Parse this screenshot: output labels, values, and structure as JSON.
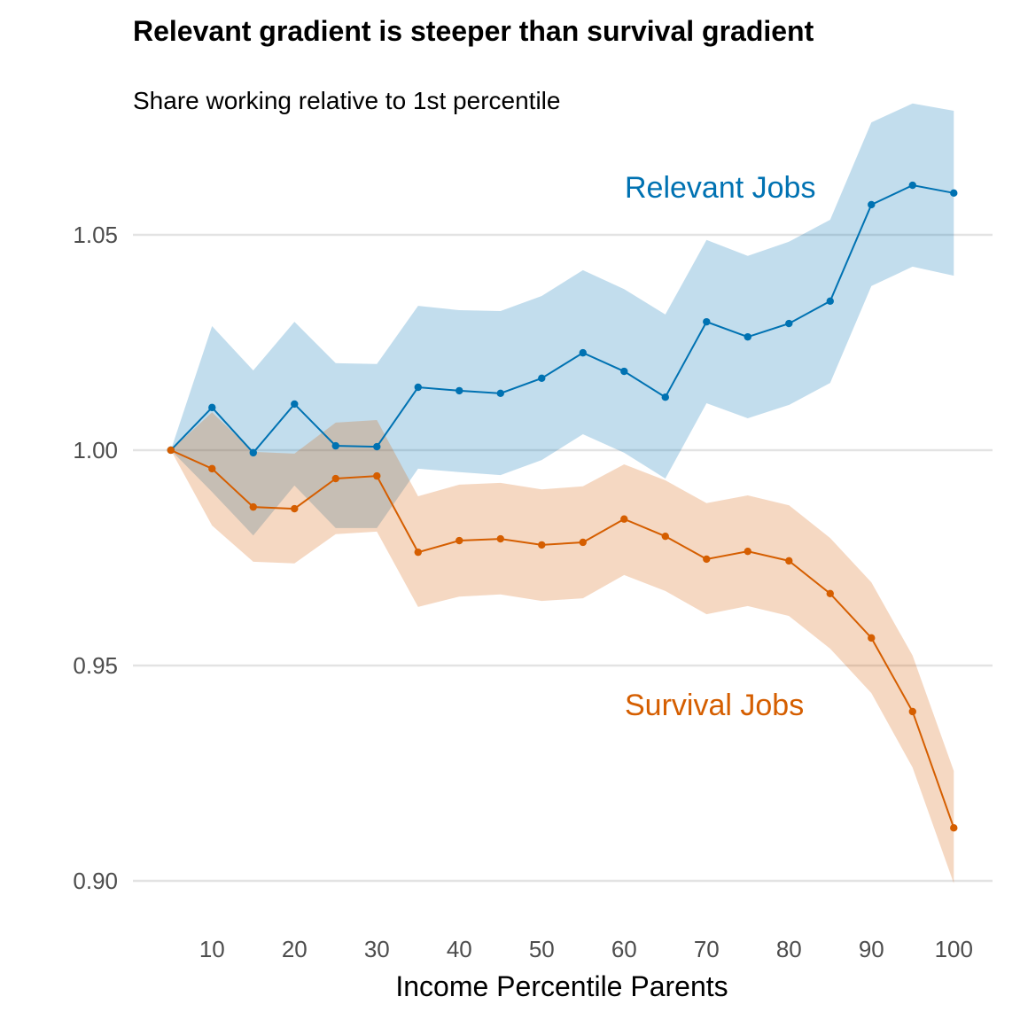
{
  "chart_data": {
    "type": "line",
    "title": "Relevant gradient is steeper than survival gradient",
    "subtitle": "Share working relative to 1st percentile",
    "xlabel": "Income Percentile Parents",
    "ylabel": "",
    "xlim": [
      0.4,
      104.7
    ],
    "ylim": [
      0.898,
      1.081
    ],
    "xticks": [
      10,
      20,
      30,
      40,
      50,
      60,
      70,
      80,
      90,
      100
    ],
    "xtick_labels": [
      "10",
      "20",
      "30",
      "40",
      "50",
      "60",
      "70",
      "80",
      "90",
      "100"
    ],
    "yticks": [
      0.9,
      0.95,
      1.0,
      1.05
    ],
    "ytick_labels": [
      "0.90",
      "0.95",
      "1.00",
      "1.05"
    ],
    "grid": "horizontal major lines only",
    "legend": "direct labels on the chart",
    "x": [
      5,
      10,
      15,
      20,
      25,
      30,
      35,
      40,
      45,
      50,
      55,
      60,
      65,
      70,
      75,
      80,
      85,
      90,
      95,
      100
    ],
    "series": [
      {
        "name": "Relevant Jobs",
        "color": "#0072B2",
        "values": [
          1.0,
          1.0099,
          0.9994,
          1.0107,
          1.001,
          1.0008,
          1.0146,
          1.0138,
          1.0132,
          1.0167,
          1.0226,
          1.0183,
          1.0123,
          1.0298,
          1.0263,
          1.0294,
          1.0346,
          1.057,
          1.0615,
          1.0597
        ],
        "upper": [
          1.0,
          1.0288,
          1.0185,
          1.0298,
          1.0202,
          1.02,
          1.0335,
          1.0325,
          1.0323,
          1.0358,
          1.0418,
          1.0374,
          1.0315,
          1.0488,
          1.0451,
          1.0484,
          1.0535,
          1.0761,
          1.0805,
          1.0788
        ],
        "lower": [
          1.0,
          0.9903,
          0.9802,
          0.9918,
          0.9819,
          0.9819,
          0.9957,
          0.9949,
          0.9942,
          0.9977,
          1.0037,
          0.9994,
          0.9934,
          1.0109,
          1.0074,
          1.0105,
          1.0156,
          1.0381,
          1.0426,
          1.0405
        ]
      },
      {
        "name": "Survival Jobs",
        "color": "#D55E00",
        "values": [
          1.0,
          0.9957,
          0.9868,
          0.9864,
          0.9934,
          0.994,
          0.9763,
          0.979,
          0.9794,
          0.978,
          0.9786,
          0.984,
          0.98,
          0.9747,
          0.9765,
          0.9743,
          0.9667,
          0.9564,
          0.9393,
          0.9123
        ],
        "upper": [
          1.0,
          1.0088,
          0.9996,
          0.9992,
          1.0064,
          1.007,
          0.9893,
          0.992,
          0.9924,
          0.9909,
          0.9916,
          0.9967,
          0.993,
          0.9877,
          0.9895,
          0.9872,
          0.9796,
          0.9693,
          0.9523,
          0.9255
        ],
        "lower": [
          1.0,
          0.9825,
          0.9741,
          0.9737,
          0.9805,
          0.9811,
          0.9636,
          0.966,
          0.9665,
          0.965,
          0.9656,
          0.971,
          0.9673,
          0.9619,
          0.9638,
          0.9615,
          0.9539,
          0.9436,
          0.9263,
          0.8994
        ]
      }
    ]
  }
}
